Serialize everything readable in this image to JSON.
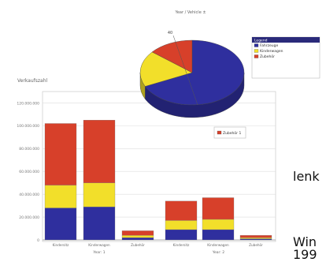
{
  "page_title": "Year / Vehicle ±",
  "side_text": {
    "line_1": "lenk",
    "line_2": "Win",
    "line_3": "199"
  },
  "colors": {
    "series_blue": "#2f2f9e",
    "series_yellow": "#f2df2a",
    "series_red": "#d7402a",
    "grid": "#dddddd",
    "axis": "#999999",
    "frame": "#cfcfcf"
  },
  "chart_data": [
    {
      "type": "bar",
      "stacked": true,
      "ylabel": "Verkaufszahl",
      "ylim": [
        0,
        130000000
      ],
      "y_ticks": [
        "0",
        "20.000.000",
        "40.000.000",
        "60.000.000",
        "80.000.000",
        "100.000.000",
        "120.000.000"
      ],
      "categories": [
        "Kindersitz",
        "Kinderwagen",
        "Zubehör",
        "Kindersitz",
        "Kinderwagen",
        "Zubehör"
      ],
      "groups": [
        {
          "label": "Year: 1",
          "categories": [
            0,
            1,
            2
          ]
        },
        {
          "label": "Year: 2",
          "categories": [
            3,
            4,
            5
          ]
        }
      ],
      "series": [
        {
          "color": "#2f2f9e",
          "values": [
            28000000,
            29000000,
            2000000,
            9000000,
            9000000,
            1000000
          ]
        },
        {
          "color": "#f2df2a",
          "values": [
            20000000,
            21000000,
            2000000,
            8000000,
            9000000,
            1000000
          ]
        },
        {
          "color": "#d7402a",
          "values": [
            54000000,
            55000000,
            4000000,
            17000000,
            19000000,
            2000000
          ]
        }
      ],
      "grid": true
    },
    {
      "type": "pie",
      "style": "3d",
      "values": [
        68,
        18,
        14
      ],
      "slice_colors": [
        "#2f2f9e",
        "#f2df2a",
        "#d7402a"
      ],
      "slice_labels": [
        "40",
        "",
        ""
      ],
      "legend": {
        "title": "Legend",
        "entries": [
          "Fahrzeuge",
          "Kinderwagen",
          "Zubehör"
        ],
        "placement": "top-right"
      },
      "callout": "Zubehör 1"
    }
  ]
}
